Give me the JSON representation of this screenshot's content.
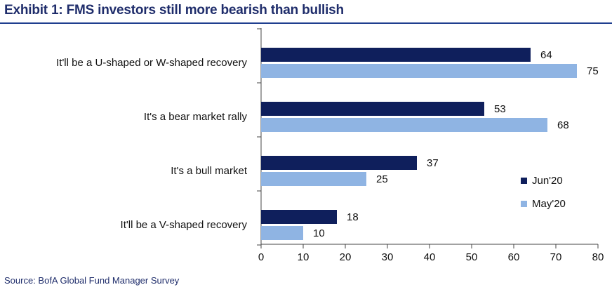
{
  "header": {
    "title": "Exhibit 1: FMS investors still more bearish than bullish"
  },
  "footer": {
    "source": "Source:  BofA Global Fund Manager Survey"
  },
  "colors": {
    "jun": "#0f1f5c",
    "may": "#8fb4e3",
    "title": "#1f2d6b",
    "rule": "#1f3f8f"
  },
  "chart_data": {
    "type": "bar",
    "orientation": "horizontal",
    "title": "",
    "xlabel": "",
    "ylabel": "",
    "categories": [
      "It'll be a U-shaped or W-shaped recovery",
      "It's a bear market rally",
      "It's a bull market",
      "It'll be a V-shaped recovery"
    ],
    "series": [
      {
        "name": "Jun'20",
        "values": [
          64,
          53,
          37,
          18
        ],
        "color": "#0f1f5c"
      },
      {
        "name": "May'20",
        "values": [
          75,
          68,
          25,
          10
        ],
        "color": "#8fb4e3"
      }
    ],
    "xlim": [
      0,
      80
    ],
    "xticks": [
      0,
      10,
      20,
      30,
      40,
      50,
      60,
      70,
      80
    ],
    "grid": false,
    "legend_position": "right",
    "data_labels": true
  }
}
